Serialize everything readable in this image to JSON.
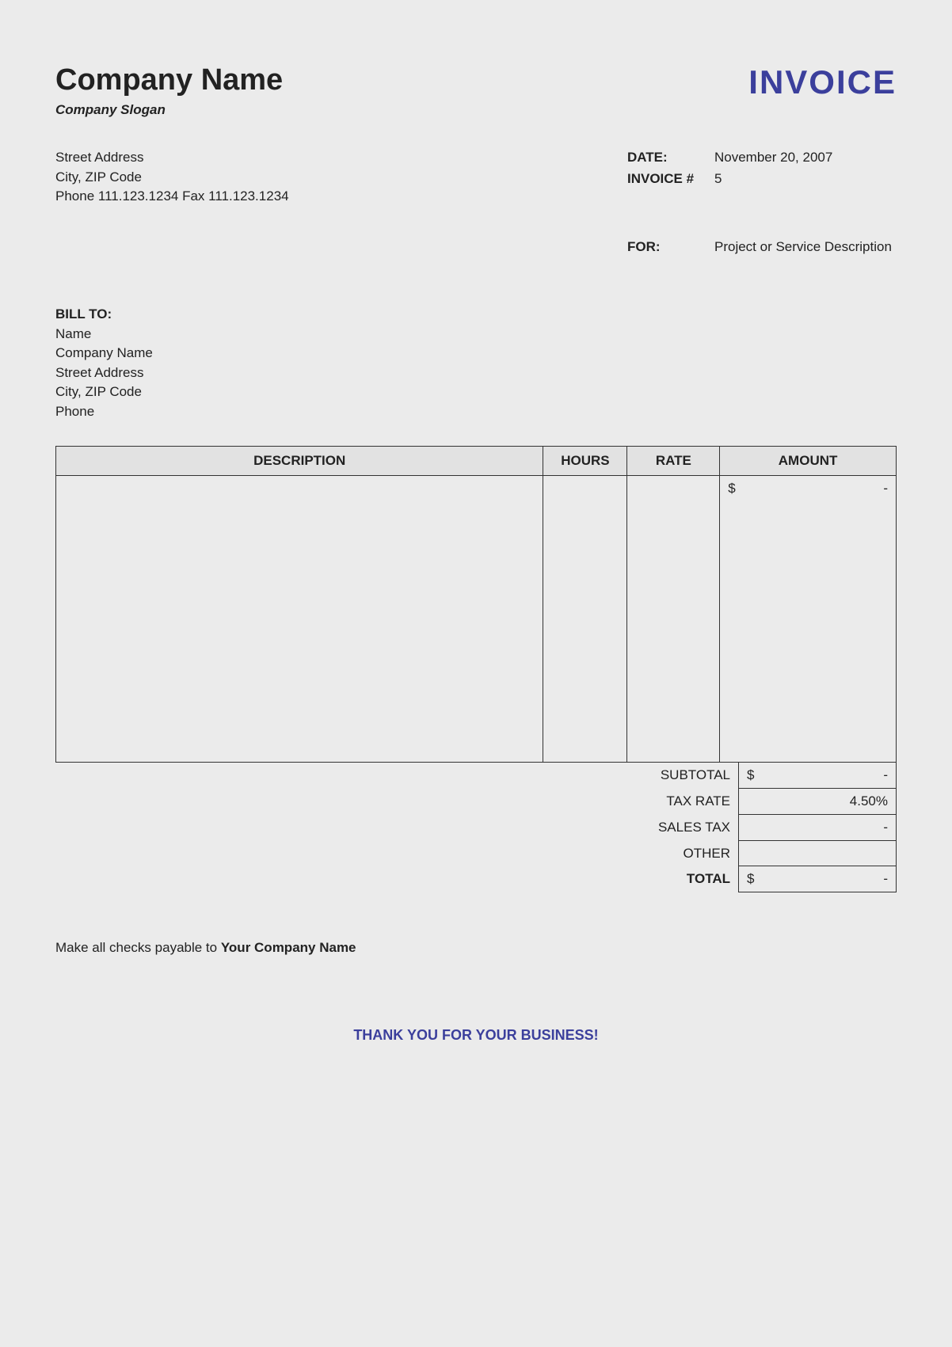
{
  "company": {
    "name": "Company Name",
    "slogan": "Company Slogan",
    "street": "Street Address",
    "city_zip": "City, ZIP Code",
    "phone_fax": "Phone 111.123.1234   Fax 111.123.1234"
  },
  "invoice": {
    "title": "INVOICE",
    "date_label": "DATE:",
    "date_value": "November 20, 2007",
    "number_label": "INVOICE #",
    "number_value": "5",
    "for_label": "FOR:",
    "for_value": "Project or Service Description"
  },
  "bill_to": {
    "label": "BILL TO:",
    "name": "Name",
    "company": "Company Name",
    "street": "Street Address",
    "city_zip": "City, ZIP Code",
    "phone": "Phone"
  },
  "table": {
    "columns": [
      "DESCRIPTION",
      "HOURS",
      "RATE",
      "AMOUNT"
    ],
    "column_widths_pct": [
      58,
      10,
      11,
      21
    ],
    "header_bg": "#e2e2e2",
    "border_color": "#333333",
    "empty_row_count": 12,
    "first_amount_currency": "$",
    "first_amount_value": "-"
  },
  "totals": {
    "rows": [
      {
        "label": "SUBTOTAL",
        "currency": "$",
        "value": "-",
        "bold": false
      },
      {
        "label": "TAX RATE",
        "currency": "",
        "value": "4.50%",
        "bold": false
      },
      {
        "label": "SALES TAX",
        "currency": "",
        "value": "-",
        "bold": false
      },
      {
        "label": "OTHER",
        "currency": "",
        "value": "",
        "bold": false
      },
      {
        "label": "TOTAL",
        "currency": "$",
        "value": "-",
        "bold": true
      }
    ]
  },
  "checks": {
    "prefix": "Make all checks payable to",
    "payee": "Your Company Name"
  },
  "thanks": "THANK YOU FOR YOUR BUSINESS!",
  "colors": {
    "background": "#ebebeb",
    "text": "#222222",
    "accent": "#3b3f9c"
  },
  "typography": {
    "base_font": "Arial",
    "company_name_size_pt": 28,
    "invoice_title_size_pt": 32,
    "body_size_pt": 13
  }
}
